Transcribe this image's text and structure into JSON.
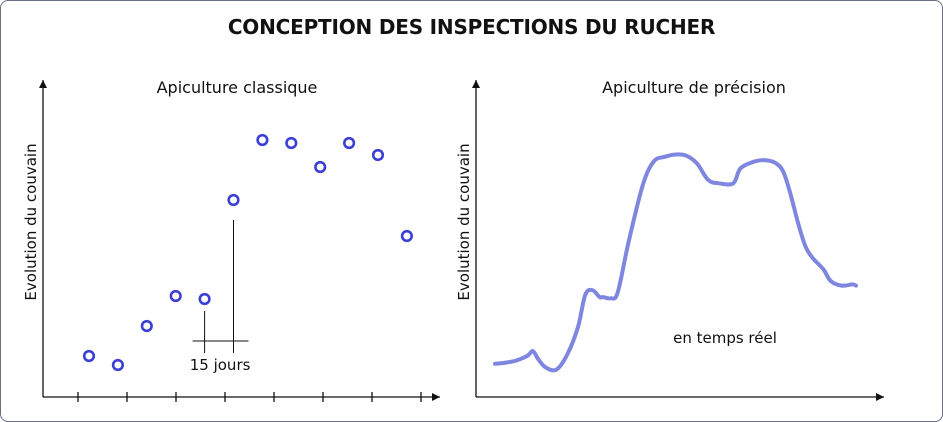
{
  "title": "CONCEPTION DES INSPECTIONS DU RUCHER",
  "colors": {
    "points": "#3b3fd6",
    "curve": "#7f86e0",
    "axis": "#111111"
  },
  "chart_data": [
    {
      "type": "scatter",
      "title": "Apiculture classique",
      "ylabel": "Evolution du couvain",
      "xlabel": "",
      "grid": false,
      "x_ticks": 8,
      "x": [
        1,
        2,
        3,
        4,
        5,
        6,
        7,
        8,
        9,
        10,
        11,
        12
      ],
      "values": [
        8,
        5,
        18,
        28,
        27,
        60,
        80,
        79,
        71,
        79,
        75,
        48
      ],
      "ylim": [
        0,
        100
      ],
      "annotation": {
        "label": "15 jours",
        "from_point": 5,
        "to_point": 6
      }
    },
    {
      "type": "line",
      "title": "Apiculture de précision",
      "ylabel": "Evolution du couvain",
      "xlabel": "",
      "grid": false,
      "annotation": {
        "label": "en temps réel"
      },
      "ylim": [
        0,
        100
      ],
      "x": [
        0,
        3,
        6,
        9,
        10.5,
        12,
        14,
        17,
        20,
        23,
        25,
        27,
        29,
        30,
        32,
        34,
        37,
        41,
        44,
        47,
        50,
        53,
        56,
        59,
        62,
        66,
        68,
        72,
        75,
        78,
        80,
        82,
        84,
        86,
        88,
        91,
        93,
        96,
        99,
        100
      ],
      "values": [
        4,
        4.5,
        5.5,
        7.5,
        9.5,
        6,
        2.5,
        1.5,
        8,
        20,
        34,
        36,
        33,
        33,
        32.5,
        35,
        57,
        82,
        92,
        94,
        95,
        94.5,
        91,
        84,
        82.5,
        82.5,
        89,
        92,
        92.5,
        91,
        87,
        77,
        65,
        55,
        50,
        45,
        40,
        38,
        38.5,
        38
      ]
    }
  ]
}
